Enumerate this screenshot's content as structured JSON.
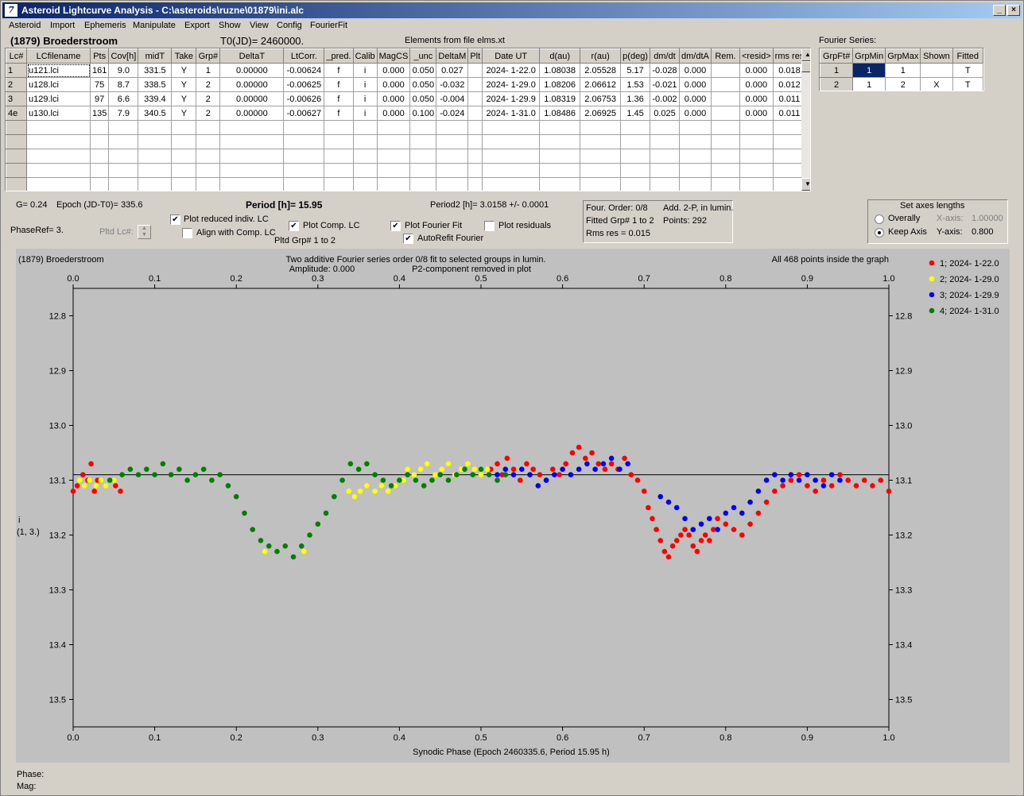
{
  "window": {
    "title": "Asteroid Lightcurve Analysis - C:\\asteroids\\ruzne\\01879\\ini.alc",
    "icon": "app-icon"
  },
  "menu": [
    "Asteroid",
    "Import",
    "Ephemeris",
    "Manipulate",
    "Export",
    "Show",
    "View",
    "Config",
    "FourierFit"
  ],
  "header": {
    "asteroid": "(1879) Broederstroom",
    "t0": "T0(JD)= 2460000.",
    "elements": "Elements from file elms.xt"
  },
  "lc_table": {
    "columns": [
      "Lc#",
      "LCfilename",
      "Pts",
      "Cov[h]",
      "midT",
      "Take",
      "Grp#",
      "DeltaT",
      "LtCorr.",
      "_pred.",
      "Calib",
      "MagCS",
      "_unc",
      "DeltaM",
      "Plt",
      "Date UT",
      "d(au)",
      "r(au)",
      "p(deg)",
      "dm/dt",
      "dm/dtA",
      "Rem.",
      "<resid>",
      "rms res"
    ],
    "rows": [
      [
        "1",
        "u121.lci",
        "161",
        "9.0",
        "331.5",
        "Y",
        "1",
        "0.00000",
        "-0.00624",
        "f",
        "i",
        "0.000",
        "0.050",
        "0.027",
        "",
        "2024- 1-22.0",
        "1.08038",
        "2.05528",
        "5.17",
        "-0.028",
        "0.000",
        "",
        "0.000",
        "0.018"
      ],
      [
        "2",
        "u128.lci",
        "75",
        "8.7",
        "338.5",
        "Y",
        "2",
        "0.00000",
        "-0.00625",
        "f",
        "i",
        "0.000",
        "0.050",
        "-0.032",
        "",
        "2024- 1-29.0",
        "1.08206",
        "2.06612",
        "1.53",
        "-0.021",
        "0.000",
        "",
        "0.000",
        "0.012"
      ],
      [
        "3",
        "u129.lci",
        "97",
        "6.6",
        "339.4",
        "Y",
        "2",
        "0.00000",
        "-0.00626",
        "f",
        "i",
        "0.000",
        "0.050",
        "-0.004",
        "",
        "2024- 1-29.9",
        "1.08319",
        "2.06753",
        "1.36",
        "-0.002",
        "0.000",
        "",
        "0.000",
        "0.011"
      ],
      [
        "4e",
        "u130.lci",
        "135",
        "7.9",
        "340.5",
        "Y",
        "2",
        "0.00000",
        "-0.00627",
        "f",
        "i",
        "0.000",
        "0.100",
        "-0.024",
        "",
        "2024- 1-31.0",
        "1.08486",
        "2.06925",
        "1.45",
        "0.025",
        "0.000",
        "",
        "0.000",
        "0.011"
      ]
    ]
  },
  "fourier": {
    "label": "Fourier Series:",
    "columns": [
      "GrpFt#",
      "GrpMin",
      "GrpMax",
      "Shown",
      "Fitted"
    ],
    "rows": [
      [
        "1",
        "1",
        "1",
        "",
        "T"
      ],
      [
        "2",
        "1",
        "2",
        "X",
        "T"
      ]
    ]
  },
  "info": {
    "g": "G= 0.24",
    "epoch": "Epoch (JD-T0)= 335.6",
    "period": "Period [h]= 15.95",
    "period2": "Period2 [h]= 3.0158 +/- 0.0001",
    "phaseref": "PhaseRef= 3.",
    "pltd_lc": "Pltd Lc#:",
    "pltd_grp": "Pltd Grp#  1   to   2"
  },
  "options": {
    "plot_reduced": {
      "label": "Plot reduced indiv. LC",
      "checked": true
    },
    "align_comp": {
      "label": "Align with Comp. LC",
      "checked": false
    },
    "plot_comp": {
      "label": "Plot Comp. LC",
      "checked": true
    },
    "plot_fourier": {
      "label": "Plot Fourier Fit",
      "checked": true
    },
    "plot_residuals": {
      "label": "Plot residuals",
      "checked": false
    },
    "autorefit": {
      "label": "AutoRefit Fourier",
      "checked": true
    }
  },
  "fit_info": {
    "order": "Four. Order:  0/8",
    "add": "Add. 2-P, in lumin.",
    "fitted": "Fitted Grp# 1 to 2",
    "points": "Points: 292",
    "rms": "Rms res     = 0.015"
  },
  "axes": {
    "title": "Set axes lengths",
    "overally": "Overally",
    "keep": "Keep Axis",
    "xaxis_label": "X-axis:",
    "xaxis_value": "1.00000",
    "yaxis_label": "Y-axis:",
    "yaxis_value": "0.800"
  },
  "plot": {
    "name": "(1879) Broederstroom",
    "line1": "Two additive Fourier series order 0/8 fit to selected groups in lumin.",
    "line2": "Amplitude: 0.000",
    "line3": "P2-component removed in plot",
    "inside": "All 468 points inside the graph",
    "ylabel1": "i",
    "ylabel2": "(1, 3.)",
    "xlabel": "Synodic Phase (Epoch 2460335.6, Period 15.95 h)"
  },
  "status": {
    "phase": "Phase:",
    "mag": "Mag:"
  },
  "chart_data": {
    "type": "scatter",
    "xlim": [
      0.0,
      1.0
    ],
    "ylim": [
      12.75,
      13.55
    ],
    "y_inverted": true,
    "xticks": [
      "0.0",
      "0.1",
      "0.2",
      "0.3",
      "0.4",
      "0.5",
      "0.6",
      "0.7",
      "0.8",
      "0.9",
      "1.0"
    ],
    "yticks": [
      "12.8",
      "12.9",
      "13.0",
      "13.1",
      "13.2",
      "13.3",
      "13.4",
      "13.5"
    ],
    "fit_level": 13.09,
    "legend_position": "right",
    "series": [
      {
        "name": "1; 2024- 1-22.0",
        "color": "#ff0000",
        "points": [
          [
            0.0,
            13.12
          ],
          [
            0.005,
            13.11
          ],
          [
            0.012,
            13.09
          ],
          [
            0.018,
            13.1
          ],
          [
            0.022,
            13.07
          ],
          [
            0.026,
            13.12
          ],
          [
            0.03,
            13.1
          ],
          [
            0.052,
            13.11
          ],
          [
            0.058,
            13.12
          ],
          [
            0.512,
            13.08
          ],
          [
            0.52,
            13.07
          ],
          [
            0.526,
            13.09
          ],
          [
            0.532,
            13.06
          ],
          [
            0.54,
            13.08
          ],
          [
            0.548,
            13.1
          ],
          [
            0.556,
            13.07
          ],
          [
            0.564,
            13.08
          ],
          [
            0.572,
            13.09
          ],
          [
            0.58,
            13.1
          ],
          [
            0.588,
            13.08
          ],
          [
            0.596,
            13.09
          ],
          [
            0.604,
            13.07
          ],
          [
            0.612,
            13.05
          ],
          [
            0.62,
            13.04
          ],
          [
            0.628,
            13.06
          ],
          [
            0.636,
            13.05
          ],
          [
            0.644,
            13.07
          ],
          [
            0.652,
            13.08
          ],
          [
            0.66,
            13.07
          ],
          [
            0.668,
            13.08
          ],
          [
            0.676,
            13.06
          ],
          [
            0.684,
            13.09
          ],
          [
            0.692,
            13.1
          ],
          [
            0.7,
            13.12
          ],
          [
            0.705,
            13.15
          ],
          [
            0.71,
            13.17
          ],
          [
            0.715,
            13.19
          ],
          [
            0.72,
            13.21
          ],
          [
            0.725,
            13.23
          ],
          [
            0.73,
            13.24
          ],
          [
            0.735,
            13.22
          ],
          [
            0.74,
            13.21
          ],
          [
            0.745,
            13.2
          ],
          [
            0.75,
            13.19
          ],
          [
            0.755,
            13.2
          ],
          [
            0.76,
            13.22
          ],
          [
            0.765,
            13.23
          ],
          [
            0.77,
            13.21
          ],
          [
            0.775,
            13.2
          ],
          [
            0.78,
            13.21
          ],
          [
            0.785,
            13.19
          ],
          [
            0.79,
            13.17
          ],
          [
            0.8,
            13.18
          ],
          [
            0.81,
            13.19
          ],
          [
            0.82,
            13.2
          ],
          [
            0.83,
            13.18
          ],
          [
            0.84,
            13.16
          ],
          [
            0.85,
            13.14
          ],
          [
            0.86,
            13.12
          ],
          [
            0.87,
            13.11
          ],
          [
            0.88,
            13.1
          ],
          [
            0.89,
            13.09
          ],
          [
            0.9,
            13.11
          ],
          [
            0.91,
            13.12
          ],
          [
            0.92,
            13.1
          ],
          [
            0.93,
            13.11
          ],
          [
            0.94,
            13.09
          ],
          [
            0.95,
            13.1
          ],
          [
            0.96,
            13.11
          ],
          [
            0.97,
            13.1
          ],
          [
            0.98,
            13.11
          ],
          [
            0.99,
            13.1
          ],
          [
            1.0,
            13.12
          ]
        ]
      },
      {
        "name": "2; 2024- 1-29.0",
        "color": "#ffff00",
        "points": [
          [
            0.008,
            13.1
          ],
          [
            0.014,
            13.11
          ],
          [
            0.02,
            13.1
          ],
          [
            0.028,
            13.11
          ],
          [
            0.034,
            13.1
          ],
          [
            0.04,
            13.11
          ],
          [
            0.05,
            13.1
          ],
          [
            0.235,
            13.23
          ],
          [
            0.283,
            13.23
          ],
          [
            0.338,
            13.12
          ],
          [
            0.345,
            13.13
          ],
          [
            0.352,
            13.12
          ],
          [
            0.36,
            13.11
          ],
          [
            0.37,
            13.12
          ],
          [
            0.378,
            13.11
          ],
          [
            0.386,
            13.12
          ],
          [
            0.395,
            13.11
          ],
          [
            0.405,
            13.1
          ],
          [
            0.41,
            13.08
          ],
          [
            0.418,
            13.09
          ],
          [
            0.426,
            13.08
          ],
          [
            0.434,
            13.07
          ],
          [
            0.444,
            13.09
          ],
          [
            0.452,
            13.08
          ],
          [
            0.46,
            13.07
          ],
          [
            0.468,
            13.09
          ],
          [
            0.476,
            13.08
          ],
          [
            0.484,
            13.07
          ],
          [
            0.492,
            13.08
          ],
          [
            0.5,
            13.09
          ],
          [
            0.508,
            13.08
          ]
        ]
      },
      {
        "name": "3; 2024- 1-29.9",
        "color": "#0000ff",
        "points": [
          [
            0.52,
            13.09
          ],
          [
            0.53,
            13.08
          ],
          [
            0.54,
            13.09
          ],
          [
            0.55,
            13.08
          ],
          [
            0.56,
            13.09
          ],
          [
            0.57,
            13.11
          ],
          [
            0.58,
            13.1
          ],
          [
            0.59,
            13.09
          ],
          [
            0.6,
            13.08
          ],
          [
            0.61,
            13.09
          ],
          [
            0.62,
            13.08
          ],
          [
            0.63,
            13.07
          ],
          [
            0.64,
            13.08
          ],
          [
            0.65,
            13.07
          ],
          [
            0.66,
            13.06
          ],
          [
            0.67,
            13.08
          ],
          [
            0.68,
            13.07
          ],
          [
            0.72,
            13.13
          ],
          [
            0.73,
            13.14
          ],
          [
            0.74,
            13.15
          ],
          [
            0.75,
            13.17
          ],
          [
            0.76,
            13.19
          ],
          [
            0.77,
            13.18
          ],
          [
            0.78,
            13.17
          ],
          [
            0.79,
            13.19
          ],
          [
            0.8,
            13.16
          ],
          [
            0.81,
            13.15
          ],
          [
            0.82,
            13.16
          ],
          [
            0.83,
            13.14
          ],
          [
            0.84,
            13.12
          ],
          [
            0.85,
            13.1
          ],
          [
            0.86,
            13.09
          ],
          [
            0.87,
            13.1
          ],
          [
            0.88,
            13.09
          ],
          [
            0.89,
            13.1
          ],
          [
            0.9,
            13.09
          ],
          [
            0.91,
            13.1
          ],
          [
            0.92,
            13.11
          ],
          [
            0.93,
            13.09
          ],
          [
            0.94,
            13.1
          ]
        ]
      },
      {
        "name": "4; 2024- 1-31.0",
        "color": "#008000",
        "points": [
          [
            0.045,
            13.1
          ],
          [
            0.06,
            13.09
          ],
          [
            0.07,
            13.08
          ],
          [
            0.08,
            13.09
          ],
          [
            0.09,
            13.08
          ],
          [
            0.1,
            13.09
          ],
          [
            0.11,
            13.07
          ],
          [
            0.12,
            13.09
          ],
          [
            0.13,
            13.08
          ],
          [
            0.14,
            13.1
          ],
          [
            0.15,
            13.09
          ],
          [
            0.16,
            13.08
          ],
          [
            0.17,
            13.1
          ],
          [
            0.18,
            13.09
          ],
          [
            0.19,
            13.11
          ],
          [
            0.2,
            13.13
          ],
          [
            0.21,
            13.16
          ],
          [
            0.22,
            13.19
          ],
          [
            0.23,
            13.21
          ],
          [
            0.24,
            13.22
          ],
          [
            0.25,
            13.23
          ],
          [
            0.26,
            13.22
          ],
          [
            0.27,
            13.24
          ],
          [
            0.28,
            13.22
          ],
          [
            0.29,
            13.2
          ],
          [
            0.3,
            13.18
          ],
          [
            0.31,
            13.16
          ],
          [
            0.32,
            13.13
          ],
          [
            0.33,
            13.1
          ],
          [
            0.34,
            13.07
          ],
          [
            0.35,
            13.08
          ],
          [
            0.36,
            13.07
          ],
          [
            0.37,
            13.09
          ],
          [
            0.38,
            13.1
          ],
          [
            0.39,
            13.11
          ],
          [
            0.4,
            13.1
          ],
          [
            0.41,
            13.09
          ],
          [
            0.42,
            13.1
          ],
          [
            0.43,
            13.11
          ],
          [
            0.44,
            13.1
          ],
          [
            0.45,
            13.09
          ],
          [
            0.46,
            13.1
          ],
          [
            0.47,
            13.09
          ],
          [
            0.48,
            13.08
          ],
          [
            0.49,
            13.09
          ],
          [
            0.5,
            13.08
          ],
          [
            0.51,
            13.09
          ],
          [
            0.52,
            13.1
          ],
          [
            0.53,
            13.09
          ]
        ]
      }
    ]
  }
}
